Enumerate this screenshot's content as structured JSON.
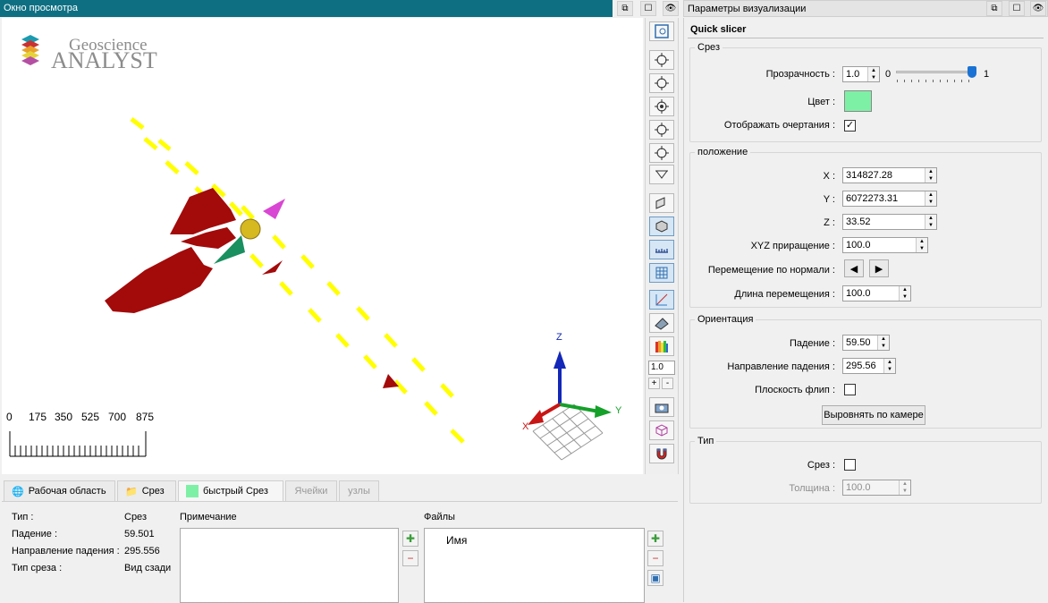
{
  "viewport": {
    "title": "Окно просмотра",
    "logo_line1": "Geoscience",
    "logo_line2": "ANALYST",
    "scale_labels": [
      "0",
      "175",
      "350",
      "525",
      "700",
      "875"
    ],
    "axes": {
      "x": "X",
      "y": "Y",
      "z": "Z"
    },
    "zoom_value": "1.0",
    "plus": "+",
    "minus": "-"
  },
  "bottom_tabs": [
    {
      "label": "Рабочая область",
      "icon": "globe-icon"
    },
    {
      "label": "Срез",
      "icon": "folder-icon"
    },
    {
      "label": "быстрый Срез",
      "icon": "color-swatch-icon"
    },
    {
      "label": "Ячейки",
      "icon": ""
    },
    {
      "label": "узлы",
      "icon": ""
    }
  ],
  "properties": {
    "rows": [
      {
        "key": "Тип :",
        "value": "Срез"
      },
      {
        "key": "Падение :",
        "value": "59.501"
      },
      {
        "key": "Направление падения :",
        "value": "295.556"
      },
      {
        "key": "Тип среза :",
        "value": "Вид сзади"
      }
    ],
    "note_label": "Примечание",
    "files_label": "Файлы",
    "files_column": "Имя"
  },
  "right_panel": {
    "title": "Параметры визуализации",
    "header": "Quick slicer",
    "slice_group": {
      "title": "Срез",
      "transparency_label": "Прозрачность :",
      "transparency_value": "1.0",
      "slider_min": "0",
      "slider_max": "1",
      "slider_fraction": 1.0,
      "color_label": "Цвет :",
      "color_value": "#7ef0a6",
      "outline_label": "Отображать очертания :",
      "outline_checked": true
    },
    "position_group": {
      "title": "положение",
      "x_label": "X :",
      "x_value": "314827.28",
      "y_label": "Y :",
      "y_value": "6072273.31",
      "z_label": "Z :",
      "z_value": "33.52",
      "xyz_inc_label": "XYZ приращение :",
      "xyz_inc_value": "100.0",
      "normal_move_label": "Перемещение по нормали :",
      "move_len_label": "Длина перемещения :",
      "move_len_value": "100.0"
    },
    "orientation_group": {
      "title": "Ориентация",
      "dip_label": "Падение :",
      "dip_value": "59.50",
      "dipdir_label": "Направление падения :",
      "dipdir_value": "295.56",
      "flip_label": "Плоскость флип :",
      "align_button": "Выровнять по камере"
    },
    "type_group": {
      "title": "Тип",
      "slice_label": "Срез :",
      "thickness_label": "Толщина :",
      "thickness_value": "100.0"
    }
  },
  "colors": {
    "title_bar": "#0e6f82",
    "ore_body": "#a30a0a",
    "trace": "#ffff00"
  }
}
